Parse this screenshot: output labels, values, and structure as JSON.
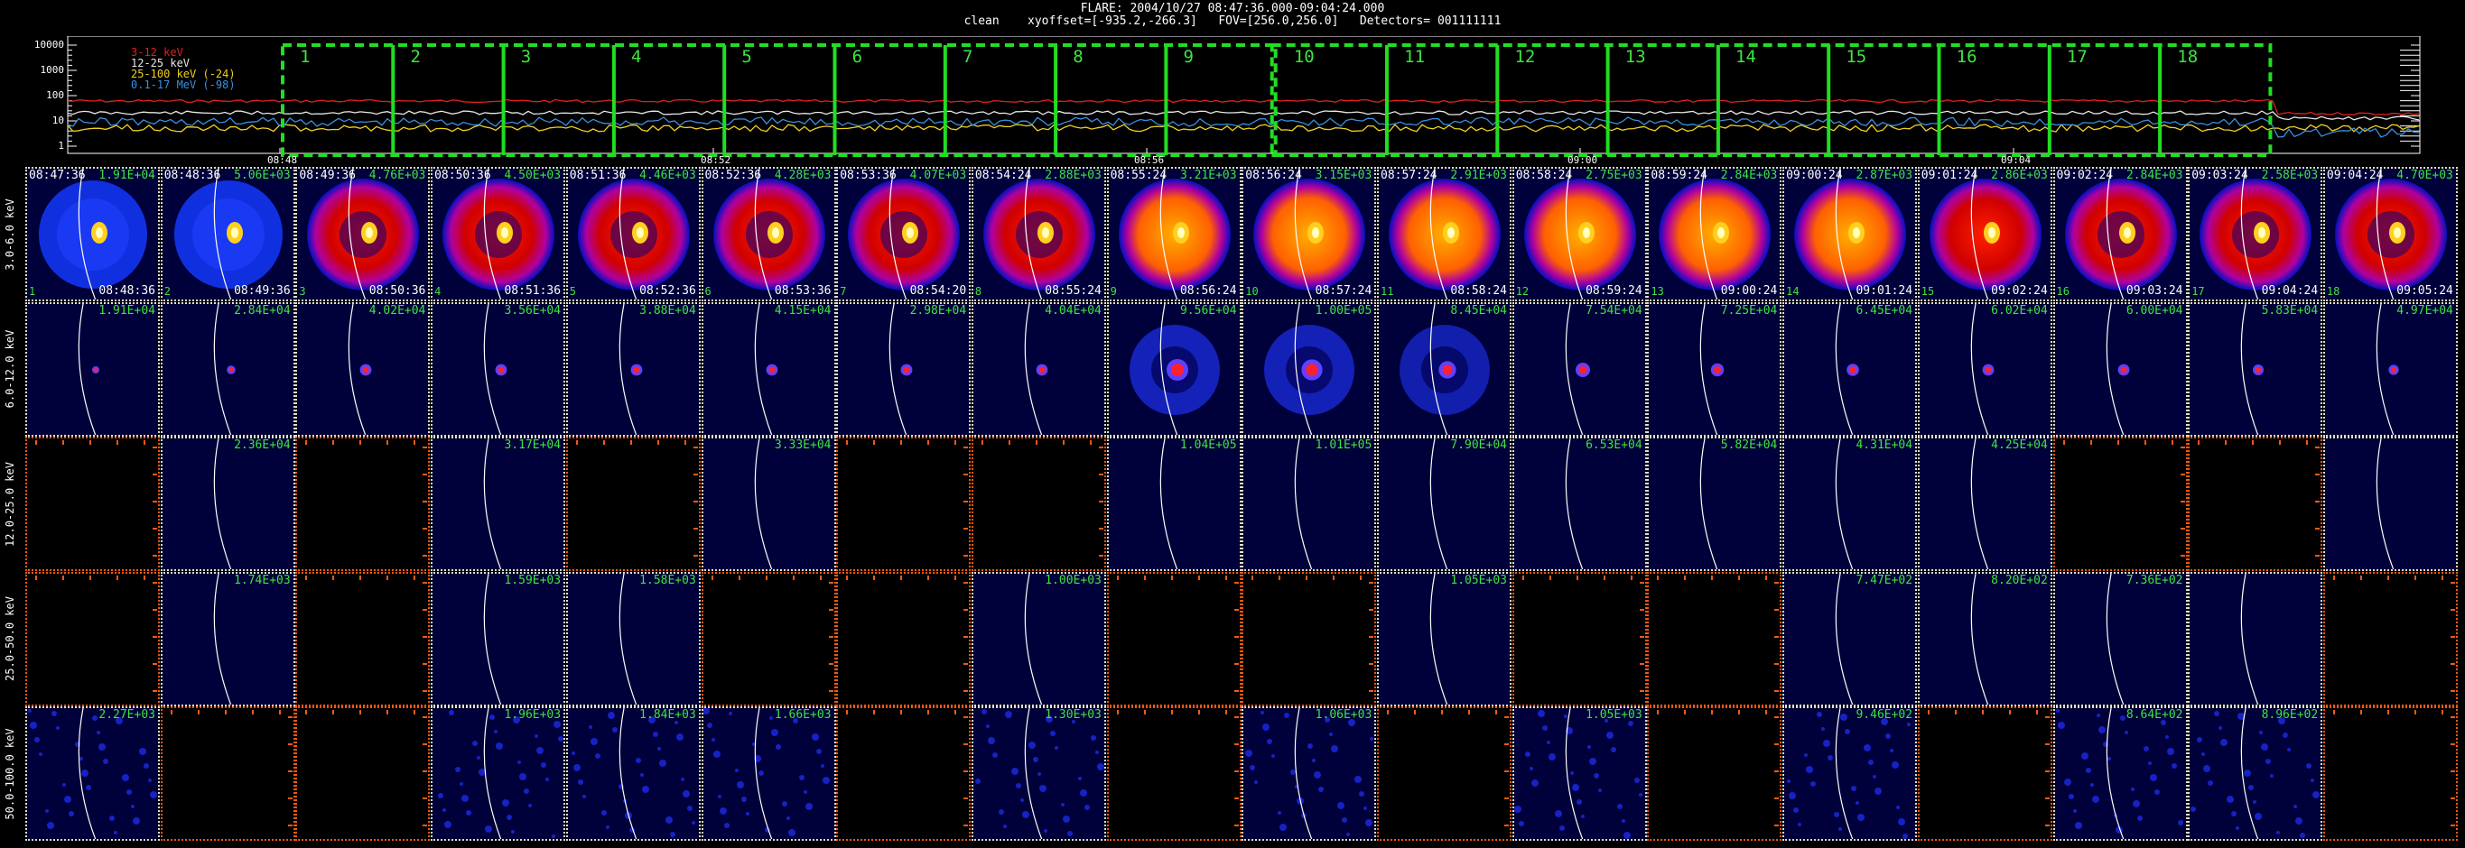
{
  "header": {
    "line1": "FLARE: 2004/10/27 08:47:36.000-09:04:24.000",
    "line2": "clean    xyoffset=[-935.2,-266.3]   FOV=[256.0,256.0]   Detectors= 001111111"
  },
  "lightcurve": {
    "yticks": [
      "10000",
      "1000",
      "100",
      "10",
      "1"
    ],
    "xticks": [
      "08:48",
      "08:52",
      "08:56",
      "09:00",
      "09:04"
    ],
    "legend": [
      {
        "label": "3-12 keV",
        "color": "#e02020"
      },
      {
        "label": "12-25 keV",
        "color": "#e8e8e8"
      },
      {
        "label": "25-100 keV (-24)",
        "color": "#f0d020"
      },
      {
        "label": "0.1-17 MeV (-98)",
        "color": "#3a8fe0"
      }
    ],
    "intervals": [
      "1",
      "2",
      "3",
      "4",
      "5",
      "6",
      "7",
      "8",
      "9",
      "10",
      "11",
      "12",
      "13",
      "14",
      "15",
      "16",
      "17",
      "18"
    ],
    "interval_color": "#22dd22"
  },
  "energy_bands": [
    "3.0-6.0 keV",
    "6.0-12.0 keV",
    "12.0-25.0 keV",
    "25.0-50.0 keV",
    "50.0-100.0 keV"
  ],
  "start_times": [
    "08:47:36",
    "08:48:36",
    "08:49:36",
    "08:50:36",
    "08:51:36",
    "08:52:36",
    "08:53:36",
    "08:54:24",
    "08:55:24",
    "08:56:24",
    "08:57:24",
    "08:58:24",
    "08:59:24",
    "09:00:24",
    "09:01:24",
    "09:02:24",
    "09:03:24",
    "09:04:24"
  ],
  "end_times": [
    "08:48:36",
    "08:49:36",
    "08:50:36",
    "08:51:36",
    "08:52:36",
    "08:53:36",
    "08:54:20",
    "08:55:24",
    "08:56:24",
    "08:57:24",
    "08:58:24",
    "08:59:24",
    "09:00:24",
    "09:01:24",
    "09:02:24",
    "09:03:24",
    "09:04:24",
    "09:05:24"
  ],
  "images": [
    {
      "max": [
        "1.91E+04",
        "5.06E+03",
        "4.76E+03",
        "4.50E+03",
        "4.46E+03",
        "4.28E+03",
        "4.07E+03",
        "2.88E+03",
        "3.21E+03",
        "3.15E+03",
        "2.91E+03",
        "2.75E+03",
        "2.84E+03",
        "2.87E+03",
        "2.86E+03",
        "2.84E+03",
        "2.58E+03",
        "4.70E+03"
      ]
    },
    {
      "max": [
        "1.91E+04",
        "2.84E+04",
        "4.02E+04",
        "3.56E+04",
        "3.88E+04",
        "4.15E+04",
        "2.98E+04",
        "4.04E+04",
        "9.56E+04",
        "1.00E+05",
        "8.45E+04",
        "7.54E+04",
        "7.25E+04",
        "6.45E+04",
        "6.02E+04",
        "6.00E+04",
        "5.83E+04",
        "4.97E+04"
      ]
    },
    {
      "max": [
        "",
        "2.36E+04",
        "",
        "3.17E+04",
        "",
        "3.33E+04",
        "",
        "",
        "1.04E+05",
        "1.01E+05",
        "7.90E+04",
        "6.53E+04",
        "5.82E+04",
        "4.31E+04",
        "4.25E+04",
        "",
        "",
        ""
      ]
    },
    {
      "max": [
        "",
        "1.74E+03",
        "",
        "1.59E+03",
        "1.58E+03",
        "",
        "",
        "1.00E+03",
        "",
        "",
        "1.05E+03",
        "",
        "",
        "7.47E+02",
        "8.20E+02",
        "7.36E+02",
        "",
        ""
      ]
    },
    {
      "max": [
        "2.27E+03",
        "",
        "",
        "1.96E+03",
        "1.84E+03",
        "1.66E+03",
        "",
        "1.30E+03",
        "",
        "1.06E+03",
        "",
        "1.05E+03",
        "",
        "9.46E+02",
        "",
        "8.64E+02",
        "8.96E+02",
        ""
      ]
    }
  ]
}
